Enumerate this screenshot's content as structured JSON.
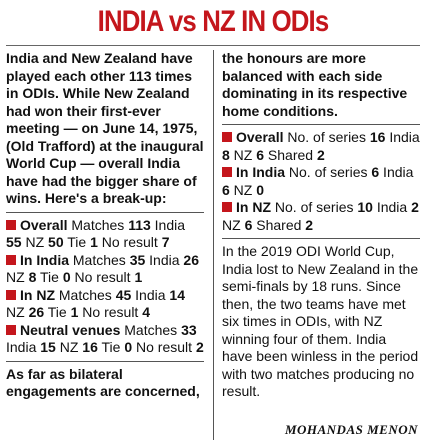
{
  "title": "INDIA vs NZ IN ODIs",
  "left": {
    "intro": "India and New Zealand have played each other 113 times in ODIs. While New Zealand had won their first-ever meeting — on June 14, 1975, (Old Trafford) at the inaugural World Cup — overall India have had the bigger share of wins. Here's a break-up:",
    "stats": [
      {
        "label": "Overall",
        "p1": " Matches ",
        "v1": "113",
        "p2": " India ",
        "v2": "55",
        "p3": " NZ ",
        "v3": "50",
        "p4": " Tie ",
        "v4": "1",
        "p5": " No result ",
        "v5": "7"
      },
      {
        "label": "In India",
        "p1": " Matches ",
        "v1": "35",
        "p2": " India ",
        "v2": "26",
        "p3": " NZ ",
        "v3": "8",
        "p4": " Tie ",
        "v4": "0",
        "p5": " No result ",
        "v5": "1"
      },
      {
        "label": "In NZ",
        "p1": " Matches ",
        "v1": "45",
        "p2": " India ",
        "v2": "14",
        "p3": " NZ ",
        "v3": "26",
        "p4": " Tie ",
        "v4": "1",
        "p5": " No result ",
        "v5": "4"
      },
      {
        "label": "Neutral venues",
        "p1": " Matches ",
        "v1": "33",
        "p2": " India ",
        "v2": "15",
        "p3": " NZ ",
        "v3": "16",
        "p4": " Tie ",
        "v4": "0",
        "p5": " No result ",
        "v5": "2"
      }
    ],
    "outro": "As far as bilateral engagements are concerned,"
  },
  "right": {
    "intro": "the honours are more balanced with each side dominating in its respective home conditions.",
    "series": [
      {
        "label": "Overall",
        "p1": " No. of series ",
        "v1": "16",
        "p2": " India ",
        "v2": "8",
        "p3": " NZ ",
        "v3": "6",
        "p4": " Shared ",
        "v4": "2"
      },
      {
        "label": "In India",
        "p1": " No. of series ",
        "v1": "6",
        "p2": " India ",
        "v2": "6",
        "p3": " NZ ",
        "v3": "0",
        "p4": "",
        "v4": ""
      },
      {
        "label": "In NZ",
        "p1": " No. of series ",
        "v1": "10",
        "p2": " India ",
        "v2": "2",
        "p3": " NZ ",
        "v3": "6",
        "p4": " Shared ",
        "v4": "2"
      }
    ],
    "worldcup": "In the 2019 ODI World Cup, India lost to New Zealand in the semi-finals by 18 runs. Since then, the two teams have met six times in ODIs, with NZ winning four of them. India have been winless in the period with two matches producing no result."
  },
  "byline": "MOHANDAS MENON",
  "colors": {
    "accent": "#c4161c",
    "text": "#111111"
  },
  "icons": {
    "bullet": "red-square-bullet-icon"
  }
}
